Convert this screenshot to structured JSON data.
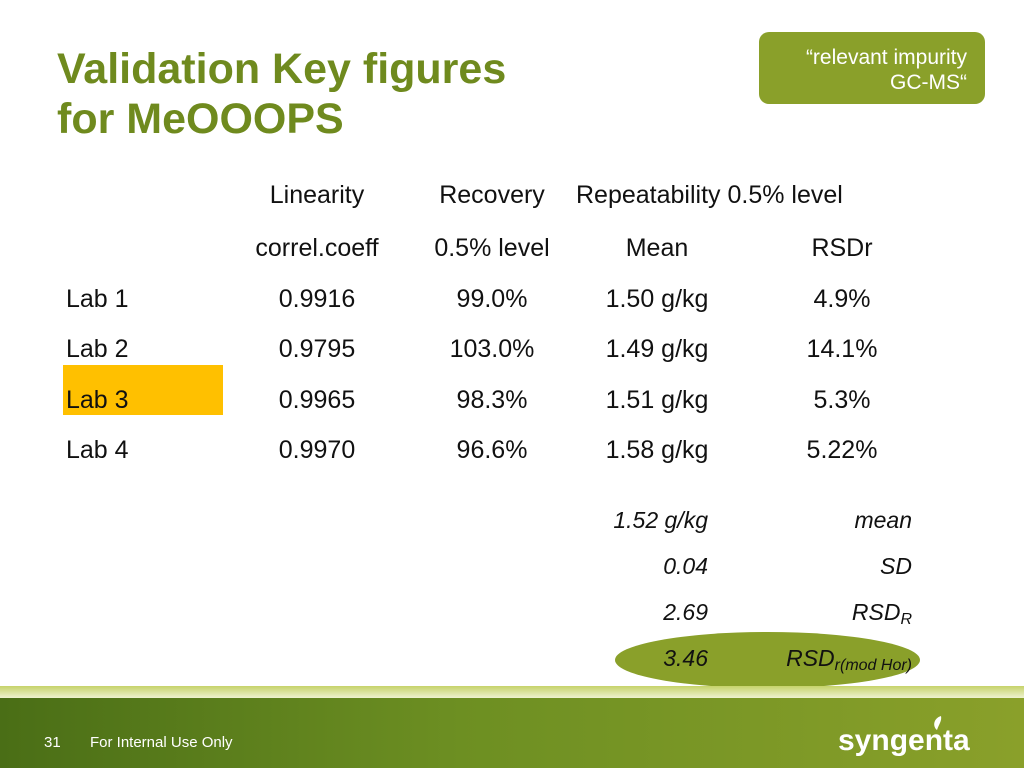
{
  "title": {
    "line1": "Validation Key figures",
    "line2": "for MeOOOPS"
  },
  "tag": {
    "line1": "“relevant impurity",
    "line2": "GC-MS“"
  },
  "header": {
    "linearity": "Linearity",
    "recovery": "Recovery",
    "repeatability": "Repeatability 0.5% level",
    "correl": "correl.coeff",
    "level": "0.5% level",
    "mean": "Mean",
    "rsdr": "RSDr"
  },
  "rows": [
    {
      "lab": "Lab 1",
      "correl": "0.9916",
      "recovery": "99.0%",
      "mean": "1.50 g/kg",
      "rsdr": "4.9%"
    },
    {
      "lab": "Lab 2",
      "correl": "0.9795",
      "recovery": "103.0%",
      "mean": "1.49 g/kg",
      "rsdr": "14.1%"
    },
    {
      "lab": "Lab 3",
      "correl": "0.9965",
      "recovery": "98.3%",
      "mean": "1.51 g/kg",
      "rsdr": "5.3%",
      "highlighted": true
    },
    {
      "lab": "Lab 4",
      "correl": "0.9970",
      "recovery": "96.6%",
      "mean": "1.58 g/kg",
      "rsdr": "5.22%"
    }
  ],
  "stats": [
    {
      "value": "1.52 g/kg",
      "label": "mean"
    },
    {
      "value": "0.04",
      "label": "SD"
    },
    {
      "value": "2.69",
      "label": "RSD",
      "sub": "R"
    },
    {
      "value": "3.46",
      "label": "RSD",
      "sub": "r(mod Hor)",
      "highlighted": true
    }
  ],
  "footer": {
    "page": "31",
    "text": "For Internal Use Only",
    "logo": "syngenta"
  },
  "colors": {
    "title": "#6f8a1e",
    "accent": "#8aa02a",
    "highlight": "#ffc000"
  }
}
